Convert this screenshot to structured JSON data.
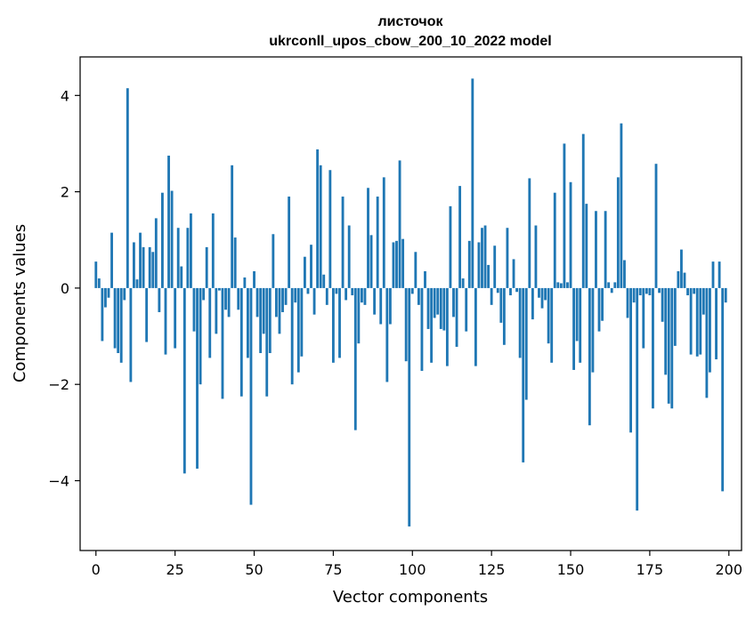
{
  "chart_data": {
    "type": "bar",
    "title": "листочок",
    "subtitle": "ukrconll_upos_cbow_200_10_2022 model",
    "xlabel": "Vector components",
    "ylabel": "Components values",
    "xlim": [
      -5,
      204
    ],
    "ylim": [
      -5.45,
      4.8
    ],
    "xticks": [
      0,
      25,
      50,
      75,
      100,
      125,
      150,
      175,
      200
    ],
    "xtick_labels": [
      "0",
      "25",
      "50",
      "75",
      "100",
      "125",
      "150",
      "175",
      "200"
    ],
    "yticks": [
      -4,
      -2,
      0,
      2,
      4
    ],
    "ytick_labels": [
      "−4",
      "−2",
      "0",
      "2",
      "4"
    ],
    "grid": false,
    "bar_color": "#1f77b4",
    "x": [
      0,
      1,
      2,
      3,
      4,
      5,
      6,
      7,
      8,
      9,
      10,
      11,
      12,
      13,
      14,
      15,
      16,
      17,
      18,
      19,
      20,
      21,
      22,
      23,
      24,
      25,
      26,
      27,
      28,
      29,
      30,
      31,
      32,
      33,
      34,
      35,
      36,
      37,
      38,
      39,
      40,
      41,
      42,
      43,
      44,
      45,
      46,
      47,
      48,
      49,
      50,
      51,
      52,
      53,
      54,
      55,
      56,
      57,
      58,
      59,
      60,
      61,
      62,
      63,
      64,
      65,
      66,
      67,
      68,
      69,
      70,
      71,
      72,
      73,
      74,
      75,
      76,
      77,
      78,
      79,
      80,
      81,
      82,
      83,
      84,
      85,
      86,
      87,
      88,
      89,
      90,
      91,
      92,
      93,
      94,
      95,
      96,
      97,
      98,
      99,
      100,
      101,
      102,
      103,
      104,
      105,
      106,
      107,
      108,
      109,
      110,
      111,
      112,
      113,
      114,
      115,
      116,
      117,
      118,
      119,
      120,
      121,
      122,
      123,
      124,
      125,
      126,
      127,
      128,
      129,
      130,
      131,
      132,
      133,
      134,
      135,
      136,
      137,
      138,
      139,
      140,
      141,
      142,
      143,
      144,
      145,
      146,
      147,
      148,
      149,
      150,
      151,
      152,
      153,
      154,
      155,
      156,
      157,
      158,
      159,
      160,
      161,
      162,
      163,
      164,
      165,
      166,
      167,
      168,
      169,
      170,
      171,
      172,
      173,
      174,
      175,
      176,
      177,
      178,
      179,
      180,
      181,
      182,
      183,
      184,
      185,
      186,
      187,
      188,
      189,
      190,
      191,
      192,
      193,
      194,
      195,
      196,
      197,
      198,
      199
    ],
    "values": [
      0.55,
      0.2,
      -1.1,
      -0.4,
      -0.2,
      1.15,
      -1.25,
      -1.35,
      -1.55,
      -0.25,
      4.15,
      -1.95,
      0.95,
      0.18,
      1.15,
      0.85,
      -1.12,
      0.85,
      0.75,
      1.45,
      -0.5,
      1.98,
      -1.38,
      2.75,
      2.02,
      -1.25,
      1.25,
      0.45,
      -3.85,
      1.25,
      1.55,
      -0.9,
      -3.75,
      -2.0,
      -0.25,
      0.85,
      -1.45,
      1.55,
      -0.95,
      -0.05,
      -2.3,
      -0.45,
      -0.6,
      2.55,
      1.05,
      -0.45,
      -2.25,
      0.22,
      -1.45,
      -4.5,
      0.35,
      -0.6,
      -1.35,
      -0.95,
      -2.25,
      -1.35,
      1.12,
      -0.6,
      -0.95,
      -0.5,
      -0.35,
      1.9,
      -2.0,
      -0.3,
      -1.75,
      -1.42,
      0.65,
      -0.12,
      0.9,
      -0.55,
      2.88,
      2.55,
      0.28,
      -0.35,
      2.45,
      -1.55,
      -0.12,
      -1.45,
      1.9,
      -0.25,
      1.3,
      -0.15,
      -2.95,
      -1.15,
      -0.3,
      -0.35,
      2.08,
      1.1,
      -0.55,
      1.9,
      -0.75,
      2.3,
      -1.95,
      -0.75,
      0.95,
      0.98,
      2.65,
      1.02,
      -1.52,
      -4.95,
      -0.12,
      0.75,
      -0.35,
      -1.72,
      0.35,
      -0.85,
      -1.55,
      -0.62,
      -0.55,
      -0.85,
      -0.88,
      -1.62,
      1.7,
      -0.6,
      -1.22,
      2.12,
      0.2,
      -0.9,
      0.98,
      4.35,
      -1.62,
      0.95,
      1.25,
      1.3,
      0.48,
      -0.35,
      0.88,
      -0.1,
      -0.72,
      -1.18,
      1.25,
      -0.15,
      0.6,
      -0.08,
      -1.45,
      -3.62,
      -2.32,
      2.28,
      -0.65,
      1.3,
      -0.2,
      -0.42,
      -0.25,
      -1.15,
      -1.55,
      1.98,
      0.12,
      0.1,
      3.0,
      0.12,
      2.2,
      -1.7,
      -1.1,
      -1.55,
      3.2,
      1.75,
      -2.85,
      -1.75,
      1.6,
      -0.9,
      -0.68,
      1.6,
      0.12,
      -0.1,
      0.12,
      2.3,
      3.42,
      0.58,
      -0.62,
      -3.0,
      -0.3,
      -4.62,
      -0.15,
      -1.25,
      -0.12,
      -0.15,
      -2.5,
      2.58,
      -0.1,
      -0.7,
      -1.8,
      -2.4,
      -2.5,
      -1.2,
      0.35,
      0.8,
      0.32,
      -0.15,
      -1.38,
      -0.12,
      -1.42,
      -1.38,
      -0.55,
      -2.28,
      -1.75,
      0.55,
      -1.48,
      0.55,
      -4.22,
      -0.3
    ]
  }
}
